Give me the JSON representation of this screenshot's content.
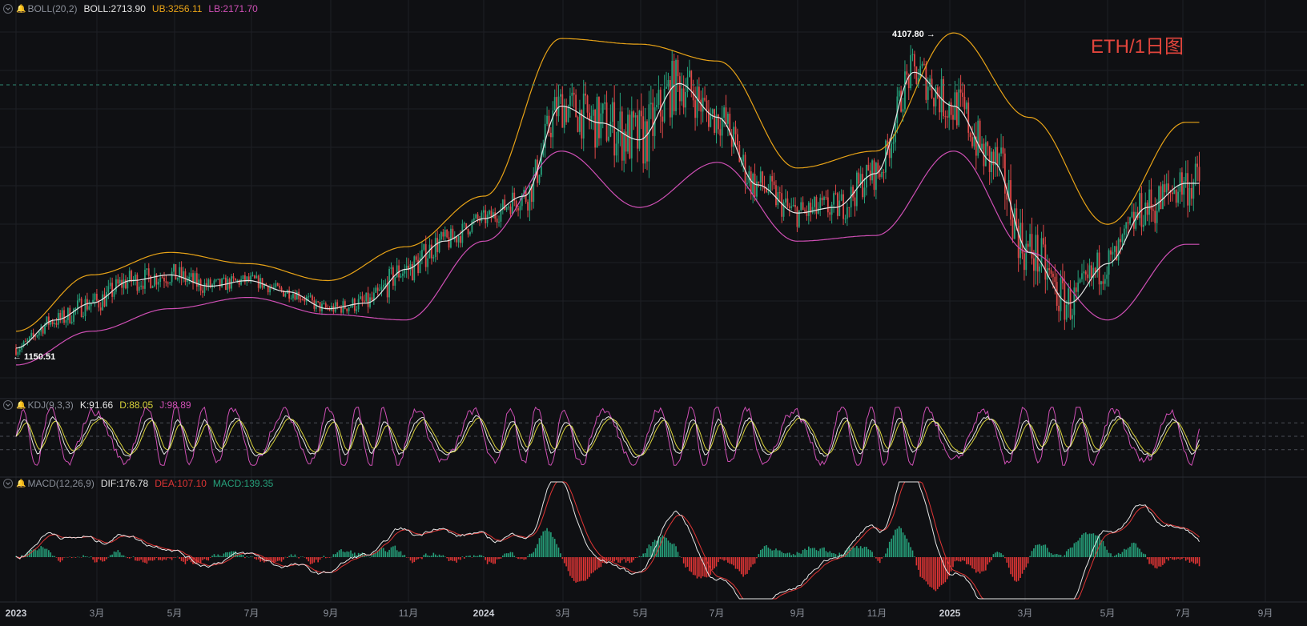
{
  "title": "ETH/1日图",
  "colors": {
    "background": "#0f1013",
    "grid": "#1d1f24",
    "up": "#26a17b",
    "down": "#e04848",
    "boll_mid": "#e6e6e6",
    "boll_upper": "#e8a317",
    "boll_lower": "#cf4fb5",
    "kdj_k": "#e6e6e6",
    "kdj_d": "#d8d23a",
    "kdj_j": "#cf4fb5",
    "macd_dif": "#e6e6e6",
    "macd_dea": "#e03535",
    "macd_hist_pos": "#26a17b",
    "macd_hist_neg": "#e03535",
    "title": "#e2453c",
    "price_line": "#2f8a74"
  },
  "legends": {
    "boll": {
      "name": "BOLL(20,2)",
      "mid": "BOLL:2713.90",
      "upper": "UB:3256.11",
      "lower": "LB:2171.70"
    },
    "kdj": {
      "name": "KDJ(9,3,3)",
      "k": "K:91.66",
      "d": "D:88.05",
      "j": "J:98.89"
    },
    "macd": {
      "name": "MACD(12,26,9)",
      "dif": "DIF:176.78",
      "dea": "DEA:107.10",
      "macd": "MACD:139.35"
    }
  },
  "annotations": {
    "high": "4107.80",
    "low": "1150.51"
  },
  "chart_data": [
    {
      "type": "line",
      "title": "ETH/1日图",
      "x_axis_labels": [
        "2023",
        "3月",
        "5月",
        "7月",
        "9月",
        "11月",
        "2024",
        "3月",
        "5月",
        "7月",
        "9月",
        "11月",
        "2025",
        "3月",
        "5月",
        "7月",
        "9月"
      ],
      "ylim": [
        1000,
        4200
      ],
      "series": [
        {
          "name": "BOLL",
          "x": [
            "2023-01",
            "2023-02",
            "2023-03",
            "2023-04",
            "2023-05",
            "2023-06",
            "2023-07",
            "2023-08",
            "2023-09",
            "2023-10",
            "2023-11",
            "2023-12",
            "2024-01",
            "2024-02",
            "2024-03",
            "2024-04",
            "2024-05",
            "2024-06",
            "2024-07",
            "2024-08",
            "2024-09",
            "2024-10",
            "2024-11",
            "2024-12",
            "2025-01",
            "2025-02",
            "2025-03",
            "2025-04",
            "2025-05",
            "2025-06",
            "2025-07"
          ],
          "values": [
            1250,
            1500,
            1650,
            1850,
            1900,
            1800,
            1850,
            1750,
            1600,
            1650,
            1950,
            2200,
            2400,
            2600,
            3400,
            3250,
            3100,
            3600,
            3300,
            2700,
            2450,
            2500,
            2800,
            3700,
            3400,
            2900,
            2100,
            1650,
            2000,
            2500,
            2714
          ]
        },
        {
          "name": "UB",
          "x": [
            "2023-01",
            "2023-03",
            "2023-05",
            "2023-07",
            "2023-09",
            "2023-11",
            "2024-01",
            "2024-03",
            "2024-05",
            "2024-07",
            "2024-09",
            "2024-11",
            "2025-01",
            "2025-03",
            "2025-05",
            "2025-07"
          ],
          "values": [
            1400,
            1900,
            2100,
            2000,
            1850,
            2150,
            2600,
            4000,
            3950,
            3800,
            2850,
            3000,
            4050,
            3300,
            2350,
            3256
          ]
        },
        {
          "name": "LB",
          "x": [
            "2023-01",
            "2023-03",
            "2023-05",
            "2023-07",
            "2023-09",
            "2023-11",
            "2024-01",
            "2024-03",
            "2024-05",
            "2024-07",
            "2024-09",
            "2024-11",
            "2025-01",
            "2025-03",
            "2025-05",
            "2025-07"
          ],
          "values": [
            1100,
            1400,
            1600,
            1700,
            1550,
            1500,
            2200,
            3000,
            2500,
            2900,
            2200,
            2250,
            3000,
            2100,
            1500,
            2172
          ]
        }
      ],
      "annotations": [
        {
          "label": "4107.80",
          "x": "2024-12",
          "y": 4107.8
        },
        {
          "label": "1150.51",
          "x": "2023-01",
          "y": 1150.51
        }
      ]
    },
    {
      "type": "line",
      "series": [
        {
          "name": "K",
          "last": 91.66
        },
        {
          "name": "D",
          "last": 88.05
        },
        {
          "name": "J",
          "last": 98.89
        }
      ],
      "ylim": [
        -20,
        120
      ]
    },
    {
      "type": "bar",
      "series": [
        {
          "name": "DIF",
          "last": 176.78
        },
        {
          "name": "DEA",
          "last": 107.1
        },
        {
          "name": "MACD",
          "last": 139.35
        }
      ]
    }
  ]
}
